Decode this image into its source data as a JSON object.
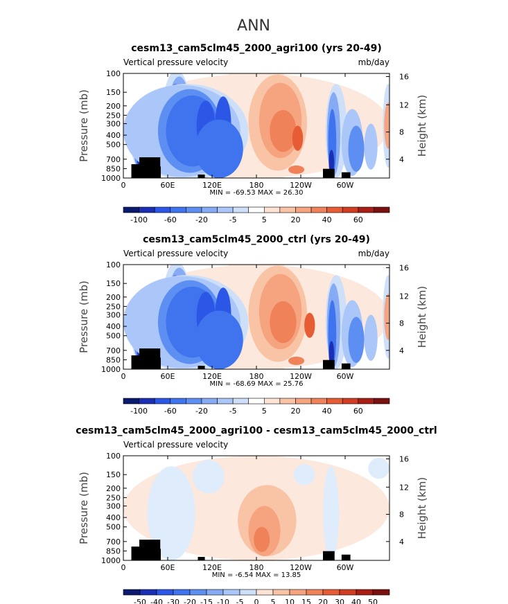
{
  "suptitle": "ANN",
  "colors": {
    "blue_scale": [
      "#0a1a6e",
      "#1a2fb4",
      "#2b56e6",
      "#3f74ee",
      "#5d8ff2",
      "#86aaf4",
      "#abc6f8",
      "#cddff9",
      "#dfecfb"
    ],
    "red_scale": [
      "#fce3d3",
      "#f9c3a6",
      "#f6a380",
      "#f0825a",
      "#e65d35",
      "#d13d22",
      "#a81e14",
      "#7a1010"
    ],
    "terrain": "#000000"
  },
  "chart_data": [
    {
      "type": "heatmap",
      "title": "cesm13_cam5clm45_2000_agri100 (yrs 20-49)",
      "left_label": "Vertical pressure velocity",
      "units": "mb/day",
      "ylabel": "Pressure (mb)",
      "y2label": "Height (km)",
      "x_ticks": [
        "0",
        "60E",
        "120E",
        "180",
        "120W",
        "60W"
      ],
      "y_ticks": [
        "100",
        "150",
        "200",
        "250",
        "300",
        "400",
        "500",
        "700",
        "850",
        "1000"
      ],
      "y2_ticks": [
        "16",
        "12",
        "8",
        "4"
      ],
      "min_max": "MIN = -69.53   MAX =  26.30",
      "colorbar_labels": [
        "-100",
        "-60",
        "-20",
        "-5",
        "5",
        "20",
        "40",
        "60"
      ],
      "colorbar_colors": [
        "#0a1a6e",
        "#1a2fb4",
        "#2b56e6",
        "#3f74ee",
        "#5d8ff2",
        "#86aaf4",
        "#abc6f8",
        "#cddff9",
        "#ffffff",
        "#fce3d3",
        "#f9c3a6",
        "#f6a380",
        "#f0825a",
        "#e65d35",
        "#d13d22",
        "#a81e14",
        "#7a1010"
      ]
    },
    {
      "type": "heatmap",
      "title": "cesm13_cam5clm45_2000_ctrl (yrs 20-49)",
      "left_label": "Vertical pressure velocity",
      "units": "mb/day",
      "ylabel": "Pressure (mb)",
      "y2label": "Height (km)",
      "x_ticks": [
        "0",
        "60E",
        "120E",
        "180",
        "120W",
        "60W"
      ],
      "y_ticks": [
        "100",
        "150",
        "200",
        "250",
        "300",
        "400",
        "500",
        "700",
        "850",
        "1000"
      ],
      "y2_ticks": [
        "16",
        "12",
        "8",
        "4"
      ],
      "min_max": "MIN = -68.69   MAX =  25.76",
      "colorbar_labels": [
        "-100",
        "-60",
        "-20",
        "-5",
        "5",
        "20",
        "40",
        "60"
      ],
      "colorbar_colors": [
        "#0a1a6e",
        "#1a2fb4",
        "#2b56e6",
        "#3f74ee",
        "#5d8ff2",
        "#86aaf4",
        "#abc6f8",
        "#cddff9",
        "#ffffff",
        "#fce3d3",
        "#f9c3a6",
        "#f6a380",
        "#f0825a",
        "#e65d35",
        "#d13d22",
        "#a81e14",
        "#7a1010"
      ]
    },
    {
      "type": "heatmap",
      "title": "cesm13_cam5clm45_2000_agri100 - cesm13_cam5clm45_2000_ctrl",
      "left_label": "Vertical pressure velocity",
      "units": "",
      "ylabel": "Pressure (mb)",
      "y2label": "Height (km)",
      "x_ticks": [
        "0",
        "60E",
        "120E",
        "180",
        "120W",
        "60W"
      ],
      "y_ticks": [
        "100",
        "150",
        "200",
        "250",
        "300",
        "400",
        "500",
        "700",
        "850",
        "1000"
      ],
      "y2_ticks": [
        "16",
        "12",
        "8",
        "4"
      ],
      "min_max": "MIN =  -6.54   MAX =  13.85",
      "colorbar_labels": [
        "-50",
        "-40",
        "-30",
        "-20",
        "-15",
        "-10",
        "-5",
        "0",
        "5",
        "10",
        "15",
        "20",
        "30",
        "40",
        "50"
      ],
      "colorbar_colors": [
        "#0a1a6e",
        "#1a2fb4",
        "#2b56e6",
        "#3f74ee",
        "#5d8ff2",
        "#86aaf4",
        "#abc6f8",
        "#cddff9",
        "#fce3d3",
        "#f9c3a6",
        "#f6a380",
        "#f0825a",
        "#e65d35",
        "#d13d22",
        "#a81e14",
        "#7a1010"
      ]
    }
  ]
}
